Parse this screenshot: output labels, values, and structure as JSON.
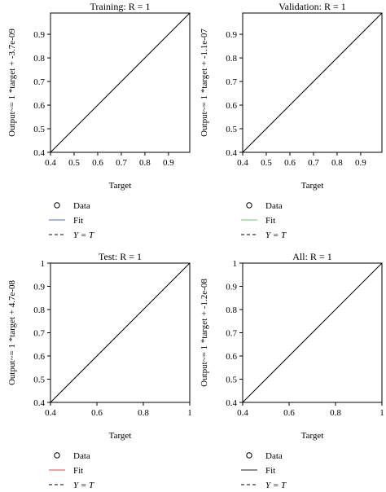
{
  "chart_data": [
    {
      "type": "line",
      "title": "Training: R = 1",
      "xlabel": "Target",
      "ylabel": "Output~= 1 *target + -3.7e-09",
      "xlim": [
        0.4,
        0.99
      ],
      "ylim": [
        0.4,
        0.99
      ],
      "xticks": [
        "0.4",
        "0.5",
        "0.6",
        "0.7",
        "0.8",
        "0.9"
      ],
      "yticks": [
        "0.4",
        "0.5",
        "0.6",
        "0.7",
        "0.8",
        "0.9"
      ],
      "grid": false,
      "legend": {
        "position": "below",
        "items": [
          {
            "label": "Data",
            "marker": "circle",
            "color": "#000000"
          },
          {
            "label": "Fit",
            "line": "solid",
            "color": "#4a72b0"
          },
          {
            "label": "Y = T",
            "line": "dashed",
            "color": "#000000"
          }
        ]
      },
      "series": [
        {
          "kind": "fit",
          "color": "#000000",
          "x": [
            0.4,
            0.99
          ],
          "y": [
            0.4,
            0.99
          ]
        }
      ]
    },
    {
      "type": "line",
      "title": "Validation: R = 1",
      "xlabel": "Target",
      "ylabel": "Output~= 1 *target + -1.1e-07",
      "xlim": [
        0.4,
        0.99
      ],
      "ylim": [
        0.4,
        0.99
      ],
      "xticks": [
        "0.4",
        "0.5",
        "0.6",
        "0.7",
        "0.8",
        "0.9"
      ],
      "yticks": [
        "0.4",
        "0.5",
        "0.6",
        "0.7",
        "0.8",
        "0.9"
      ],
      "grid": false,
      "legend": {
        "position": "below",
        "items": [
          {
            "label": "Data",
            "marker": "circle",
            "color": "#000000"
          },
          {
            "label": "Fit",
            "line": "solid",
            "color": "#6cc46c"
          },
          {
            "label": "Y = T",
            "line": "dashed",
            "color": "#000000"
          }
        ]
      },
      "series": [
        {
          "kind": "fit",
          "color": "#000000",
          "x": [
            0.4,
            0.99
          ],
          "y": [
            0.4,
            0.99
          ]
        }
      ]
    },
    {
      "type": "line",
      "title": "Test: R = 1",
      "xlabel": "Target",
      "ylabel": "Output~= 1 *target + 4.7e-08",
      "xlim": [
        0.4,
        1
      ],
      "ylim": [
        0.4,
        1
      ],
      "xticks": [
        "0.4",
        "0.6",
        "0.8",
        "1"
      ],
      "yticks": [
        "0.4",
        "0.5",
        "0.6",
        "0.7",
        "0.8",
        "0.9",
        "1"
      ],
      "grid": false,
      "legend": {
        "position": "below",
        "items": [
          {
            "label": "Data",
            "marker": "circle",
            "color": "#000000"
          },
          {
            "label": "Fit",
            "line": "solid",
            "color": "#e8453c"
          },
          {
            "label": "Y = T",
            "line": "dashed",
            "color": "#000000"
          }
        ]
      },
      "series": [
        {
          "kind": "fit",
          "color": "#000000",
          "x": [
            0.4,
            1
          ],
          "y": [
            0.4,
            1
          ]
        }
      ]
    },
    {
      "type": "line",
      "title": "All: R = 1",
      "xlabel": "Target",
      "ylabel": "Output~= 1 *target + -1.2e-08",
      "xlim": [
        0.4,
        1
      ],
      "ylim": [
        0.4,
        1
      ],
      "xticks": [
        "0.4",
        "0.6",
        "0.8",
        "1"
      ],
      "yticks": [
        "0.4",
        "0.5",
        "0.6",
        "0.7",
        "0.8",
        "0.9",
        "1"
      ],
      "grid": false,
      "legend": {
        "position": "below",
        "items": [
          {
            "label": "Data",
            "marker": "circle",
            "color": "#000000"
          },
          {
            "label": "Fit",
            "line": "solid",
            "color": "#222222"
          },
          {
            "label": "Y = T",
            "line": "dashed",
            "color": "#000000"
          }
        ]
      },
      "series": [
        {
          "kind": "fit",
          "color": "#000000",
          "x": [
            0.4,
            1
          ],
          "y": [
            0.4,
            1
          ]
        }
      ]
    }
  ]
}
